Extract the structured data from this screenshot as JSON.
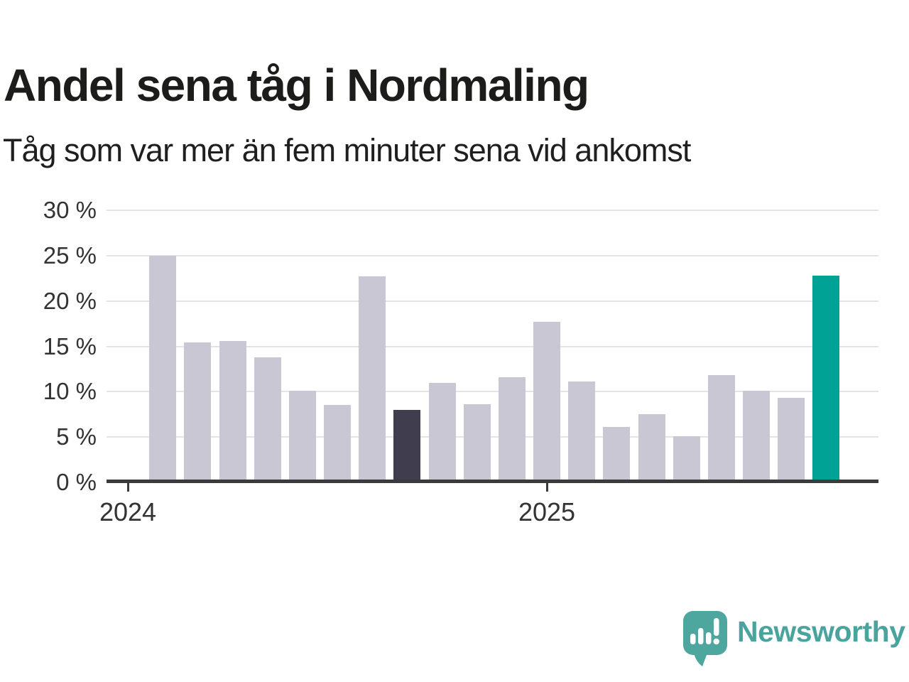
{
  "header": {
    "title": "Andel sena tåg i Nordmaling",
    "subtitle": "Tåg som var mer än fem minuter sena vid ankomst"
  },
  "chart_data": {
    "type": "bar",
    "title": "Andel sena tåg i Nordmaling",
    "subtitle": "Tåg som var mer än fem minuter sena vid ankomst",
    "unit": "%",
    "ylim": [
      0,
      30
    ],
    "grid": "horizontal",
    "legend": "none",
    "y_ticks": [
      {
        "value": 0,
        "label": "0 %"
      },
      {
        "value": 5,
        "label": "5 %"
      },
      {
        "value": 10,
        "label": "10 %"
      },
      {
        "value": 15,
        "label": "15 %"
      },
      {
        "value": 20,
        "label": "20 %"
      },
      {
        "value": 25,
        "label": "25 %"
      },
      {
        "value": 30,
        "label": "30 %"
      }
    ],
    "x_ticks": [
      {
        "label": "2024",
        "slot": 0
      },
      {
        "label": "2025",
        "slot": 12
      }
    ],
    "bars": [
      {
        "slot": 1,
        "value": 25.0,
        "highlight": "none"
      },
      {
        "slot": 2,
        "value": 15.4,
        "highlight": "none"
      },
      {
        "slot": 3,
        "value": 15.6,
        "highlight": "none"
      },
      {
        "slot": 4,
        "value": 13.8,
        "highlight": "none"
      },
      {
        "slot": 5,
        "value": 10.1,
        "highlight": "none"
      },
      {
        "slot": 6,
        "value": 8.5,
        "highlight": "none"
      },
      {
        "slot": 7,
        "value": 22.7,
        "highlight": "none"
      },
      {
        "slot": 8,
        "value": 8.0,
        "highlight": "dark"
      },
      {
        "slot": 9,
        "value": 11.0,
        "highlight": "none"
      },
      {
        "slot": 10,
        "value": 8.6,
        "highlight": "none"
      },
      {
        "slot": 11,
        "value": 11.6,
        "highlight": "none"
      },
      {
        "slot": 12,
        "value": 17.7,
        "highlight": "none"
      },
      {
        "slot": 13,
        "value": 11.1,
        "highlight": "none"
      },
      {
        "slot": 14,
        "value": 6.1,
        "highlight": "none"
      },
      {
        "slot": 15,
        "value": 7.5,
        "highlight": "none"
      },
      {
        "slot": 16,
        "value": 5.1,
        "highlight": "none"
      },
      {
        "slot": 17,
        "value": 11.8,
        "highlight": "none"
      },
      {
        "slot": 18,
        "value": 10.1,
        "highlight": "none"
      },
      {
        "slot": 19,
        "value": 9.3,
        "highlight": "none"
      },
      {
        "slot": 20,
        "value": 22.8,
        "highlight": "accent"
      }
    ],
    "colors": {
      "bar_default": "#c9c7d3",
      "bar_dark": "#403e4e",
      "bar_accent": "#00a296",
      "gridline": "#e4e4e4",
      "axis_line": "#3b3b3b",
      "axis_text": "#333333"
    }
  },
  "footer": {
    "brand": "Newsworthy",
    "logo_color": "#4da79f",
    "brand_text_color": "#4aa49e"
  }
}
